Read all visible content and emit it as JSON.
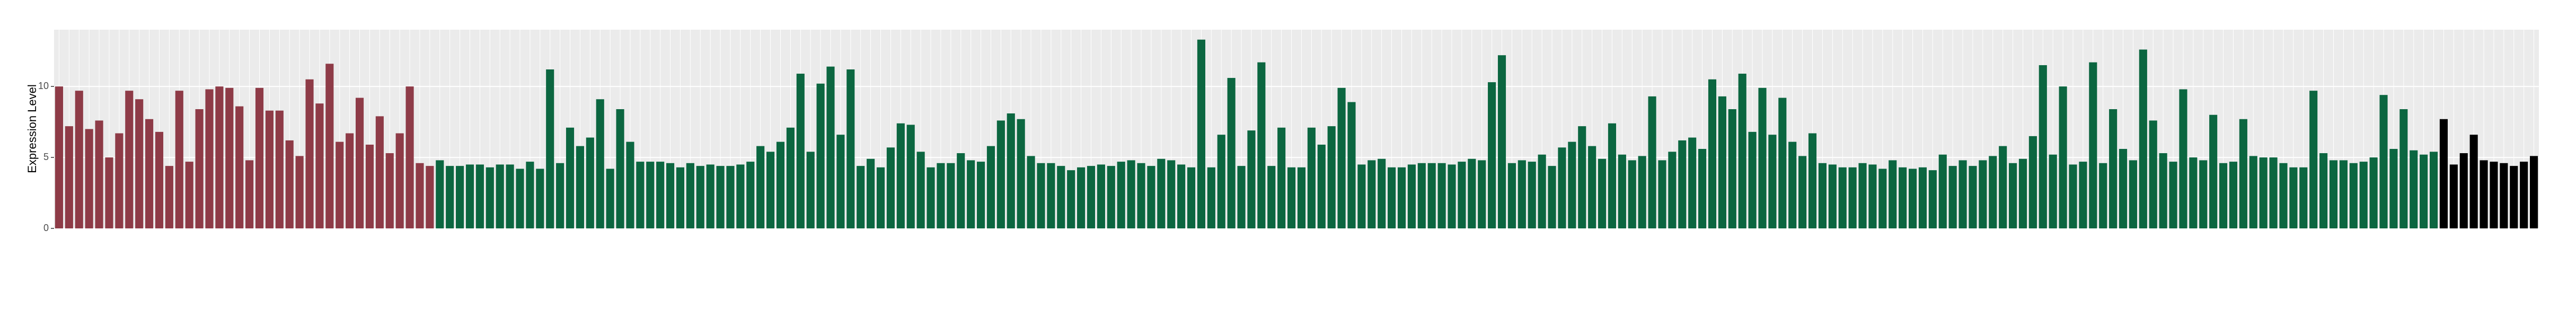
{
  "chart_data": {
    "type": "bar",
    "y_label": "Expression Level",
    "values": [
      10,
      7.2,
      9.7,
      7,
      7.6,
      5,
      6.7,
      9.7,
      9.1,
      7.7,
      6.8,
      4.4,
      9.7,
      4.7,
      8.4,
      9.8,
      10,
      9.9,
      8.6,
      4.8,
      9.9,
      8.3,
      8.3,
      6.2,
      5.1,
      10.5,
      8.8,
      11.6,
      6.1,
      6.7,
      9.2,
      5.9,
      7.9,
      5.3,
      6.7,
      10,
      4.6,
      4.4,
      4.8,
      4.4,
      4.4,
      4.5,
      4.5,
      4.3,
      4.5,
      4.5,
      4.2,
      4.7,
      4.2,
      11.2,
      4.6,
      7.1,
      5.8,
      6.4,
      9.1,
      4.2,
      8.4,
      6.1,
      4.7,
      4.7,
      4.7,
      4.6,
      4.3,
      4.6,
      4.4,
      4.5,
      4.4,
      4.4,
      4.5,
      4.7,
      5.8,
      5.4,
      6.1,
      7.1,
      10.9,
      5.4,
      10.2,
      11.4,
      6.6,
      11.2,
      4.4,
      4.9,
      4.3,
      5.7,
      7.4,
      7.3,
      5.4,
      4.3,
      4.6,
      4.6,
      5.3,
      4.8,
      4.7,
      5.8,
      7.6,
      8.1,
      7.7,
      5.1,
      4.6,
      4.6,
      4.4,
      4.1,
      4.3,
      4.4,
      4.5,
      4.4,
      4.7,
      4.8,
      4.6,
      4.4,
      4.9,
      4.8,
      4.5,
      4.3,
      13.3,
      4.3,
      6.6,
      10.6,
      4.4,
      6.9,
      11.7,
      4.4,
      7.1,
      4.3,
      4.3,
      7.1,
      5.9,
      7.2,
      9.9,
      8.9,
      4.5,
      4.8,
      4.9,
      4.3,
      4.3,
      4.5,
      4.6,
      4.6,
      4.6,
      4.5,
      4.7,
      4.9,
      4.8,
      10.3,
      12.2,
      4.6,
      4.8,
      4.7,
      5.2,
      4.4,
      5.7,
      6.1,
      7.2,
      5.8,
      4.9,
      7.4,
      5.2,
      4.8,
      5.1,
      9.3,
      4.8,
      5.4,
      6.2,
      6.4,
      5.6,
      10.5,
      9.3,
      8.4,
      10.9,
      6.8,
      9.9,
      6.6,
      9.2,
      6.1,
      5.1,
      6.7,
      4.6,
      4.5,
      4.3,
      4.3,
      4.6,
      4.5,
      4.2,
      4.8,
      4.3,
      4.2,
      4.3,
      4.1,
      5.2,
      4.4,
      4.8,
      4.4,
      4.8,
      5.1,
      5.8,
      4.6,
      4.9,
      6.5,
      11.5,
      5.2,
      10,
      4.5,
      4.7,
      11.7,
      4.6,
      8.4,
      5.6,
      4.8,
      12.6,
      7.6,
      5.3,
      4.7,
      9.8,
      5,
      4.8,
      8,
      4.6,
      4.7,
      7.7,
      5.1,
      5,
      5,
      4.6,
      4.3,
      4.3,
      9.7,
      5.3,
      4.8,
      4.8,
      4.6,
      4.7,
      5,
      9.4,
      5.6,
      8.4,
      5.5,
      5.2,
      5.4,
      7.7,
      4.5,
      5.3,
      6.6,
      4.8,
      4.7,
      4.6,
      4.4,
      4.7,
      5.1
    ],
    "colors": [
      "#8e3b47",
      "#8e3b47",
      "#8e3b47",
      "#8e3b47",
      "#8e3b47",
      "#8e3b47",
      "#8e3b47",
      "#8e3b47",
      "#8e3b47",
      "#8e3b47",
      "#8e3b47",
      "#8e3b47",
      "#8e3b47",
      "#8e3b47",
      "#8e3b47",
      "#8e3b47",
      "#8e3b47",
      "#8e3b47",
      "#8e3b47",
      "#8e3b47",
      "#8e3b47",
      "#8e3b47",
      "#8e3b47",
      "#8e3b47",
      "#8e3b47",
      "#8e3b47",
      "#8e3b47",
      "#8e3b47",
      "#8e3b47",
      "#8e3b47",
      "#8e3b47",
      "#8e3b47",
      "#8e3b47",
      "#8e3b47",
      "#8e3b47",
      "#8e3b47",
      "#8e3b47",
      "#8e3b47",
      "#0b6640",
      "#0b6640",
      "#0b6640",
      "#0b6640",
      "#0b6640",
      "#0b6640",
      "#0b6640",
      "#0b6640",
      "#0b6640",
      "#0b6640",
      "#0b6640",
      "#0b6640",
      "#0b6640",
      "#0b6640",
      "#0b6640",
      "#0b6640",
      "#0b6640",
      "#0b6640",
      "#0b6640",
      "#0b6640",
      "#0b6640",
      "#0b6640",
      "#0b6640",
      "#0b6640",
      "#0b6640",
      "#0b6640",
      "#0b6640",
      "#0b6640",
      "#0b6640",
      "#0b6640",
      "#0b6640",
      "#0b6640",
      "#0b6640",
      "#0b6640",
      "#0b6640",
      "#0b6640",
      "#0b6640",
      "#0b6640",
      "#0b6640",
      "#0b6640",
      "#0b6640",
      "#0b6640",
      "#0b6640",
      "#0b6640",
      "#0b6640",
      "#0b6640",
      "#0b6640",
      "#0b6640",
      "#0b6640",
      "#0b6640",
      "#0b6640",
      "#0b6640",
      "#0b6640",
      "#0b6640",
      "#0b6640",
      "#0b6640",
      "#0b6640",
      "#0b6640",
      "#0b6640",
      "#0b6640",
      "#0b6640",
      "#0b6640",
      "#0b6640",
      "#0b6640",
      "#0b6640",
      "#0b6640",
      "#0b6640",
      "#0b6640",
      "#0b6640",
      "#0b6640",
      "#0b6640",
      "#0b6640",
      "#0b6640",
      "#0b6640",
      "#0b6640",
      "#0b6640",
      "#0b6640",
      "#0b6640",
      "#0b6640",
      "#0b6640",
      "#0b6640",
      "#0b6640",
      "#0b6640",
      "#0b6640",
      "#0b6640",
      "#0b6640",
      "#0b6640",
      "#0b6640",
      "#0b6640",
      "#0b6640",
      "#0b6640",
      "#0b6640",
      "#0b6640",
      "#0b6640",
      "#0b6640",
      "#0b6640",
      "#0b6640",
      "#0b6640",
      "#0b6640",
      "#0b6640",
      "#0b6640",
      "#0b6640",
      "#0b6640",
      "#0b6640",
      "#0b6640",
      "#0b6640",
      "#0b6640",
      "#0b6640",
      "#0b6640",
      "#0b6640",
      "#0b6640",
      "#0b6640",
      "#0b6640",
      "#0b6640",
      "#0b6640",
      "#0b6640",
      "#0b6640",
      "#0b6640",
      "#0b6640",
      "#0b6640",
      "#0b6640",
      "#0b6640",
      "#0b6640",
      "#0b6640",
      "#0b6640",
      "#0b6640",
      "#0b6640",
      "#0b6640",
      "#0b6640",
      "#0b6640",
      "#0b6640",
      "#0b6640",
      "#0b6640",
      "#0b6640",
      "#0b6640",
      "#0b6640",
      "#0b6640",
      "#0b6640",
      "#0b6640",
      "#0b6640",
      "#0b6640",
      "#0b6640",
      "#0b6640",
      "#0b6640",
      "#0b6640",
      "#0b6640",
      "#0b6640",
      "#0b6640",
      "#0b6640",
      "#0b6640",
      "#0b6640",
      "#0b6640",
      "#0b6640",
      "#0b6640",
      "#0b6640",
      "#0b6640",
      "#0b6640",
      "#0b6640",
      "#0b6640",
      "#0b6640",
      "#0b6640",
      "#0b6640",
      "#0b6640",
      "#0b6640",
      "#0b6640",
      "#0b6640",
      "#0b6640",
      "#0b6640",
      "#0b6640",
      "#0b6640",
      "#0b6640",
      "#0b6640",
      "#0b6640",
      "#0b6640",
      "#0b6640",
      "#0b6640",
      "#0b6640",
      "#0b6640",
      "#0b6640",
      "#0b6640",
      "#0b6640",
      "#0b6640",
      "#0b6640",
      "#0b6640",
      "#0b6640",
      "#0b6640",
      "#0b6640",
      "#0b6640",
      "#0b6640",
      "#0b6640",
      "#0b6640",
      "#0b6640",
      "#0b6640",
      "#0b6640",
      "#0b6640",
      "#0b6640",
      "#0b6640",
      "#0b6640",
      "#0b6640",
      "#0b6640"
    ],
    "ylim": [
      0,
      14
    ],
    "yticks": [
      0,
      5,
      10
    ],
    "grid": true
  }
}
